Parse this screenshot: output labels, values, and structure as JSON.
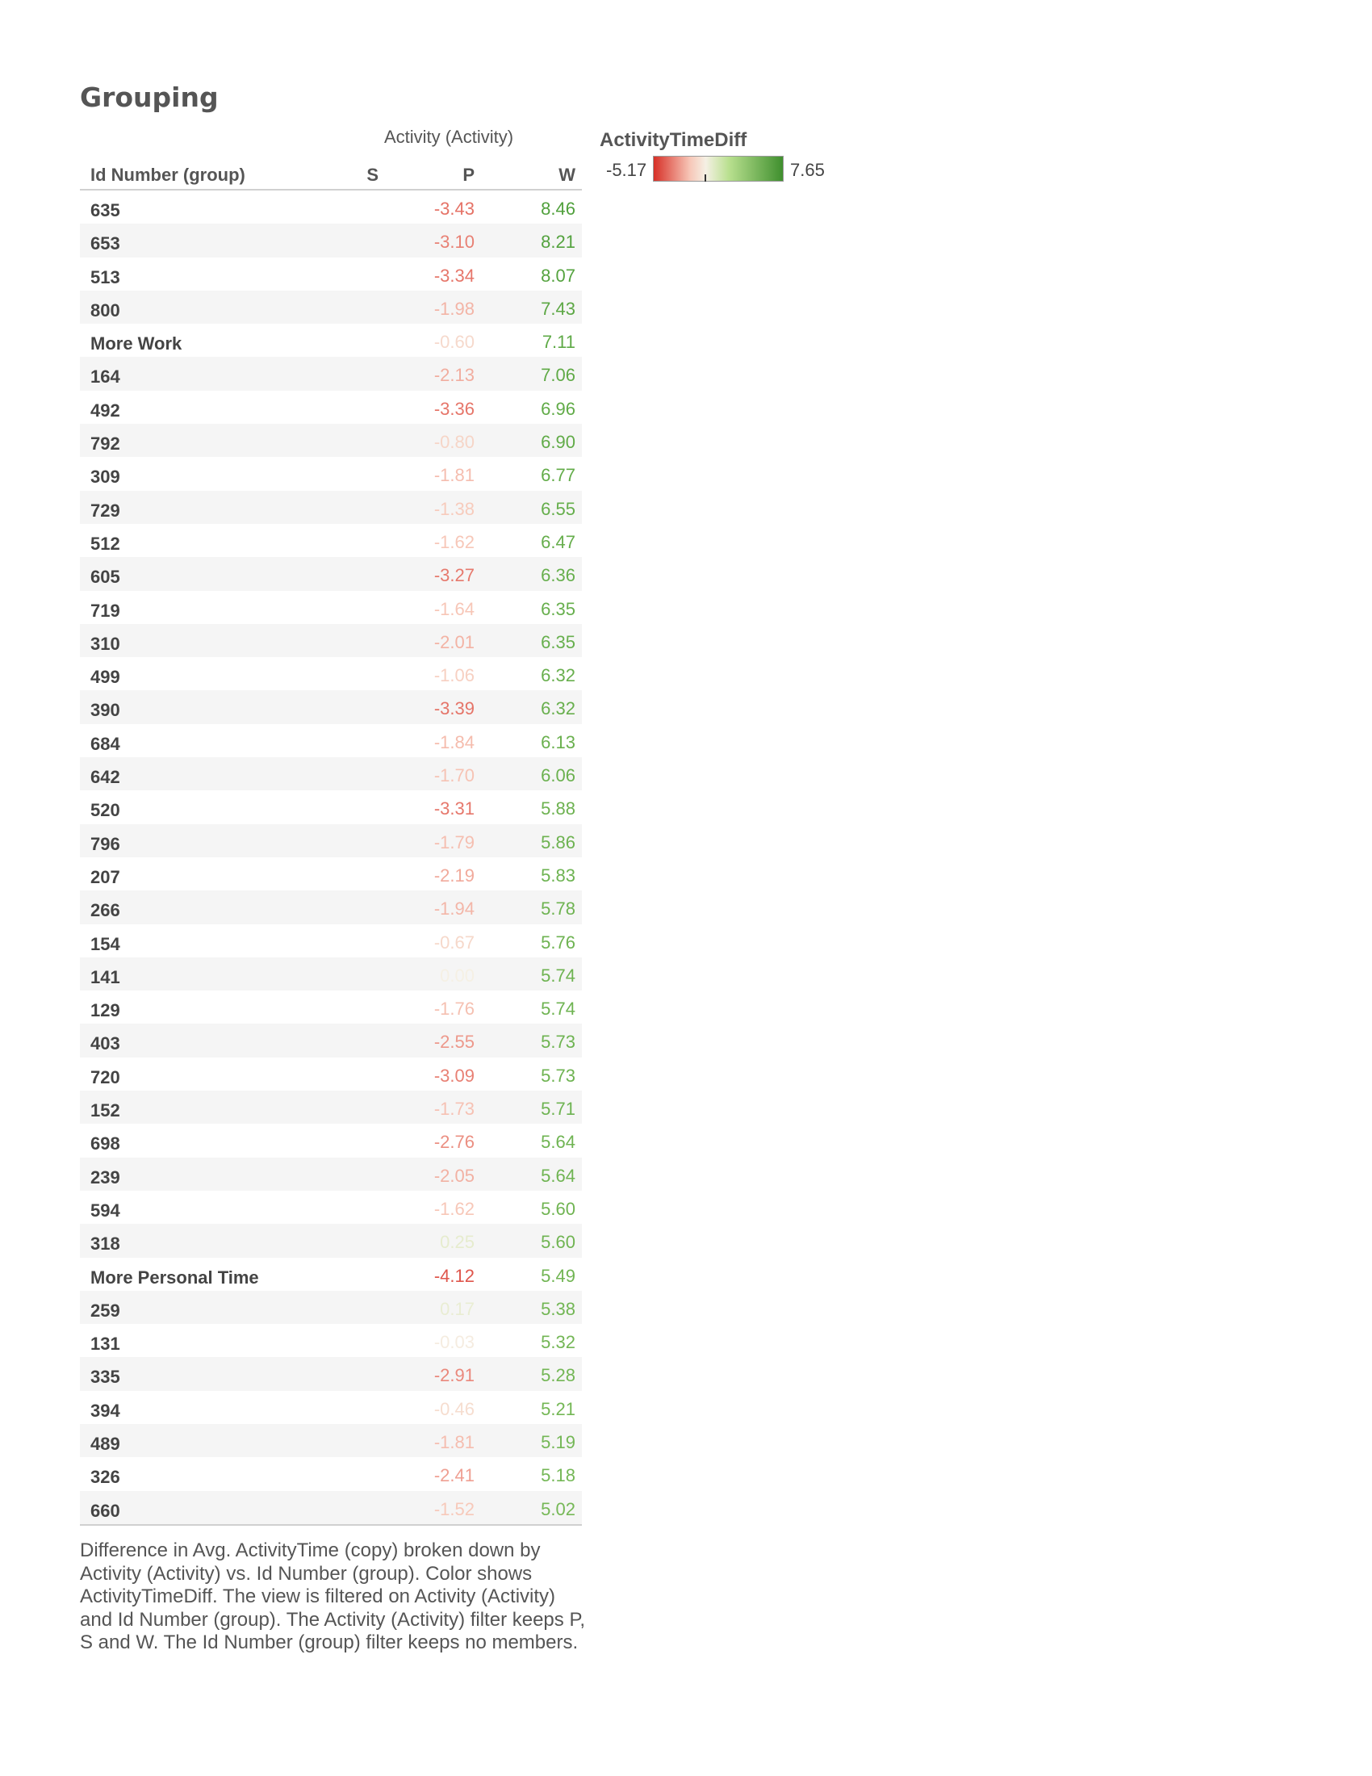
{
  "title": "Grouping",
  "table": {
    "column_group_header": "Activity (Activity)",
    "row_header": "Id Number (group)",
    "columns": [
      "S",
      "P",
      "W"
    ],
    "rows": [
      {
        "label": "635",
        "P": "-3.43",
        "W": "8.46"
      },
      {
        "label": "653",
        "P": "-3.10",
        "W": "8.21"
      },
      {
        "label": "513",
        "P": "-3.34",
        "W": "8.07"
      },
      {
        "label": "800",
        "P": "-1.98",
        "W": "7.43"
      },
      {
        "label": "More Work",
        "P": "-0.60",
        "W": "7.11"
      },
      {
        "label": "164",
        "P": "-2.13",
        "W": "7.06"
      },
      {
        "label": "492",
        "P": "-3.36",
        "W": "6.96"
      },
      {
        "label": "792",
        "P": "-0.80",
        "W": "6.90"
      },
      {
        "label": "309",
        "P": "-1.81",
        "W": "6.77"
      },
      {
        "label": "729",
        "P": "-1.38",
        "W": "6.55"
      },
      {
        "label": "512",
        "P": "-1.62",
        "W": "6.47"
      },
      {
        "label": "605",
        "P": "-3.27",
        "W": "6.36"
      },
      {
        "label": "719",
        "P": "-1.64",
        "W": "6.35"
      },
      {
        "label": "310",
        "P": "-2.01",
        "W": "6.35"
      },
      {
        "label": "499",
        "P": "-1.06",
        "W": "6.32"
      },
      {
        "label": "390",
        "P": "-3.39",
        "W": "6.32"
      },
      {
        "label": "684",
        "P": "-1.84",
        "W": "6.13"
      },
      {
        "label": "642",
        "P": "-1.70",
        "W": "6.06"
      },
      {
        "label": "520",
        "P": "-3.31",
        "W": "5.88"
      },
      {
        "label": "796",
        "P": "-1.79",
        "W": "5.86"
      },
      {
        "label": "207",
        "P": "-2.19",
        "W": "5.83"
      },
      {
        "label": "266",
        "P": "-1.94",
        "W": "5.78"
      },
      {
        "label": "154",
        "P": "-0.67",
        "W": "5.76"
      },
      {
        "label": "141",
        "P": "0.00",
        "W": "5.74"
      },
      {
        "label": "129",
        "P": "-1.76",
        "W": "5.74"
      },
      {
        "label": "403",
        "P": "-2.55",
        "W": "5.73"
      },
      {
        "label": "720",
        "P": "-3.09",
        "W": "5.73"
      },
      {
        "label": "152",
        "P": "-1.73",
        "W": "5.71"
      },
      {
        "label": "698",
        "P": "-2.76",
        "W": "5.64"
      },
      {
        "label": "239",
        "P": "-2.05",
        "W": "5.64"
      },
      {
        "label": "594",
        "P": "-1.62",
        "W": "5.60"
      },
      {
        "label": "318",
        "P": "0.25",
        "W": "5.60"
      },
      {
        "label": "More Personal Time",
        "P": "-4.12",
        "W": "5.49"
      },
      {
        "label": "259",
        "P": "0.17",
        "W": "5.38"
      },
      {
        "label": "131",
        "P": "-0.03",
        "W": "5.32"
      },
      {
        "label": "335",
        "P": "-2.91",
        "W": "5.28"
      },
      {
        "label": "394",
        "P": "-0.46",
        "W": "5.21"
      },
      {
        "label": "489",
        "P": "-1.81",
        "W": "5.19"
      },
      {
        "label": "326",
        "P": "-2.41",
        "W": "5.18"
      },
      {
        "label": "660",
        "P": "-1.52",
        "W": "5.02"
      }
    ]
  },
  "legend": {
    "title": "ActivityTimeDiff",
    "min_label": "-5.17",
    "max_label": "7.65",
    "min": -5.17,
    "max": 7.65,
    "zero_tick": 0,
    "colors": [
      "#d73027",
      "#f7c7b8",
      "#f5f0e4",
      "#b9e08f",
      "#3f8f2e"
    ]
  },
  "caption": "Difference in Avg. ActivityTime (copy) broken down by Activity (Activity) vs. Id Number (group).  Color shows ActivityTimeDiff. The view is filtered on Activity (Activity) and Id Number (group). The Activity (Activity) filter keeps P, S and W. The Id Number (group) filter keeps no members.",
  "chart_data": {
    "type": "table",
    "title": "Grouping",
    "row_dimension": "Id Number (group)",
    "column_dimension": "Activity (Activity)",
    "columns": [
      "S",
      "P",
      "W"
    ],
    "color_measure": "ActivityTimeDiff",
    "color_range": [
      -5.17,
      7.65
    ],
    "series": [
      {
        "name": "P",
        "values": [
          -3.43,
          -3.1,
          -3.34,
          -1.98,
          -0.6,
          -2.13,
          -3.36,
          -0.8,
          -1.81,
          -1.38,
          -1.62,
          -3.27,
          -1.64,
          -2.01,
          -1.06,
          -3.39,
          -1.84,
          -1.7,
          -3.31,
          -1.79,
          -2.19,
          -1.94,
          -0.67,
          0.0,
          -1.76,
          -2.55,
          -3.09,
          -1.73,
          -2.76,
          -2.05,
          -1.62,
          0.25,
          -4.12,
          0.17,
          -0.03,
          -2.91,
          -0.46,
          -1.81,
          -2.41,
          -1.52
        ]
      },
      {
        "name": "W",
        "values": [
          8.46,
          8.21,
          8.07,
          7.43,
          7.11,
          7.06,
          6.96,
          6.9,
          6.77,
          6.55,
          6.47,
          6.36,
          6.35,
          6.35,
          6.32,
          6.32,
          6.13,
          6.06,
          5.88,
          5.86,
          5.83,
          5.78,
          5.76,
          5.74,
          5.74,
          5.73,
          5.73,
          5.71,
          5.64,
          5.64,
          5.6,
          5.6,
          5.49,
          5.38,
          5.32,
          5.28,
          5.21,
          5.19,
          5.18,
          5.02
        ]
      }
    ]
  }
}
